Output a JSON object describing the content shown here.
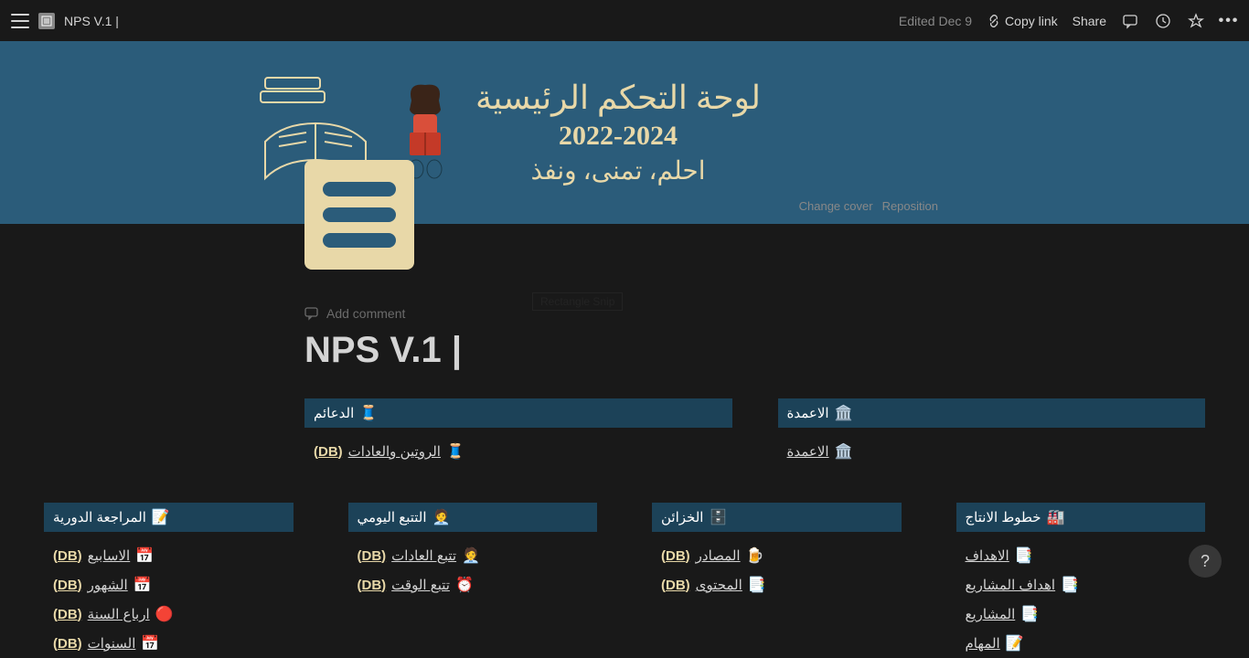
{
  "header": {
    "breadcrumb": "NPS V.1 |",
    "edited": "Edited Dec 9",
    "copy_link": "Copy link",
    "share": "Share"
  },
  "cover": {
    "title": "لوحة التحكم الرئيسية",
    "years": "2022-2024",
    "sub": "احلم، تمنى، ونفذ",
    "change_cover": "Change cover",
    "reposition": "Reposition"
  },
  "page": {
    "add_comment": "Add comment",
    "title": "NPS V.1 |"
  },
  "row1": [
    {
      "emoji": "🧵",
      "title": "الدعائم",
      "items": [
        {
          "emoji": "🧵",
          "text": "الروتين والعادات",
          "db": "(DB)"
        }
      ]
    },
    {
      "emoji": "🏛️",
      "title": "الاعمدة",
      "items": [
        {
          "emoji": "🏛️",
          "text": "الاعمدة",
          "db": ""
        }
      ]
    }
  ],
  "row2": [
    {
      "emoji": "📝",
      "title": "المراجعة الدورية",
      "items": [
        {
          "emoji": "📅",
          "text": "الاسابيع",
          "db": "(DB)"
        },
        {
          "emoji": "📅",
          "text": "الشهور",
          "db": "(DB)"
        },
        {
          "emoji": "🔴",
          "text": "ارباع السنة",
          "db": "(DB)"
        },
        {
          "emoji": "📅",
          "text": "السنوات",
          "db": "(DB)"
        }
      ]
    },
    {
      "emoji": "🧑‍💼",
      "title": "التتبع اليومي",
      "items": [
        {
          "emoji": "🧑‍💼",
          "text": "تتبع العادات",
          "db": "(DB)"
        },
        {
          "emoji": "⏰",
          "text": "تتبع الوقت",
          "db": "(DB)"
        }
      ]
    },
    {
      "emoji": "🗄️",
      "title": "الخزائن",
      "items": [
        {
          "emoji": "🍺",
          "text": "المصادر",
          "db": "(DB)"
        },
        {
          "emoji": "📑",
          "text": "المحتوى",
          "db": "(DB)"
        }
      ]
    },
    {
      "emoji": "🏭",
      "title": "خطوط الانتاج",
      "items": [
        {
          "emoji": "📑",
          "text": "الاهداف",
          "db": ""
        },
        {
          "emoji": "📑",
          "text": "اهداف المشاريع",
          "db": ""
        },
        {
          "emoji": "📑",
          "text": "المشاريع",
          "db": ""
        },
        {
          "emoji": "📝",
          "text": "المهام",
          "db": ""
        }
      ]
    }
  ],
  "snip": "Rectangle Snip"
}
